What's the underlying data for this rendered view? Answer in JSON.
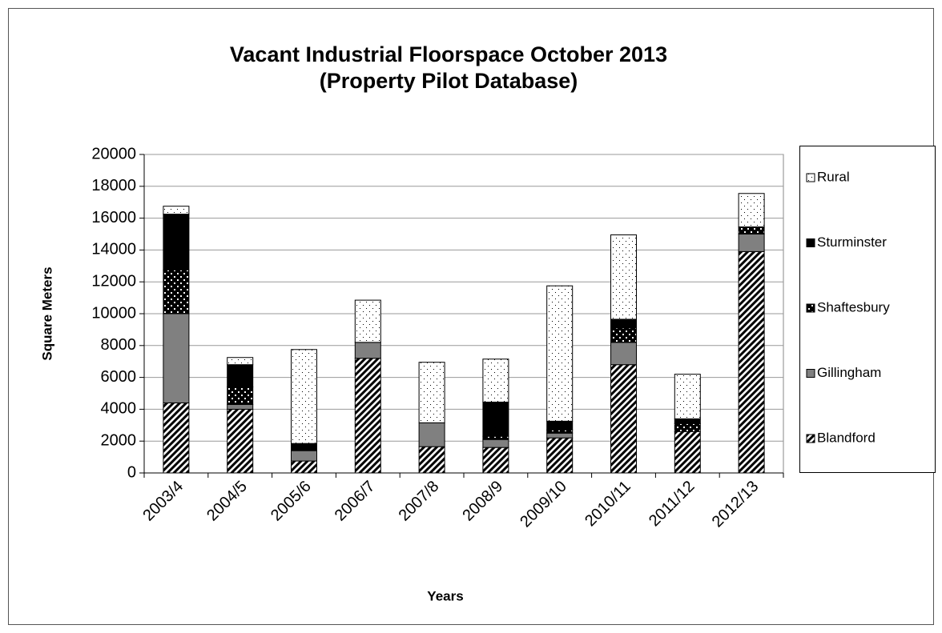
{
  "chart_data": {
    "type": "stacked_bar",
    "title": [
      "Vacant Industrial Floorspace October 2013",
      "(Property Pilot Database)"
    ],
    "x_label": "Years",
    "y_label": "Square Meters",
    "categories": [
      "2003/4",
      "2004/5",
      "2005/6",
      "2006/7",
      "2007/8",
      "2008/9",
      "2009/10",
      "2010/11",
      "2011/12",
      "2012/13"
    ],
    "series": [
      {
        "name": "Blandford",
        "color": "#000000",
        "pattern": "stripes",
        "values": [
          4400,
          4000,
          750,
          7200,
          1650,
          1600,
          2200,
          6800,
          2600,
          13900
        ]
      },
      {
        "name": "Gillingham",
        "color": "#808080",
        "pattern": "solid",
        "values": [
          5600,
          300,
          650,
          1000,
          1500,
          500,
          300,
          1400,
          0,
          1100
        ]
      },
      {
        "name": "Shaftesbury",
        "color": "#000000",
        "pattern": "whitedots",
        "values": [
          2750,
          1100,
          0,
          0,
          0,
          200,
          200,
          900,
          500,
          450
        ]
      },
      {
        "name": "Sturminster",
        "color": "#000000",
        "pattern": "solid",
        "values": [
          3500,
          1400,
          450,
          0,
          0,
          2150,
          550,
          550,
          300,
          0
        ]
      },
      {
        "name": "Rural",
        "color": "#000000",
        "pattern": "blackdots",
        "values": [
          500,
          450,
          5900,
          2650,
          3800,
          2700,
          8500,
          5300,
          2800,
          2100
        ]
      }
    ],
    "ylim": [
      0,
      20000
    ],
    "yticks": [
      0,
      2000,
      4000,
      6000,
      8000,
      10000,
      12000,
      14000,
      16000,
      18000,
      20000
    ],
    "grid": true,
    "legend": "right"
  }
}
